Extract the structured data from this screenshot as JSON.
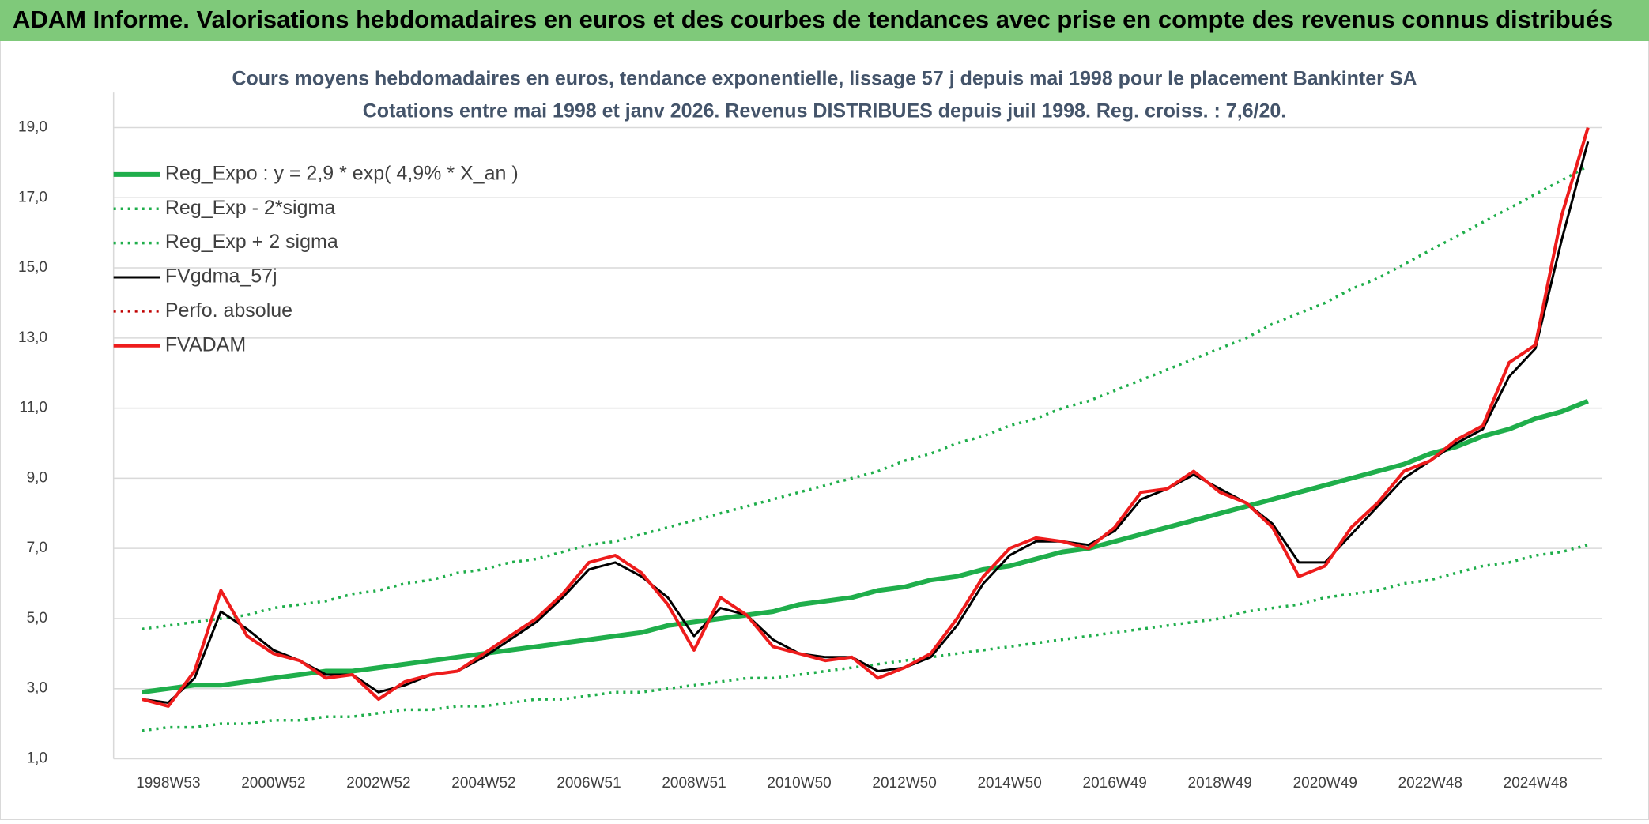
{
  "header": {
    "title": "ADAM Informe. Valorisations hebdomadaires en euros et des courbes de tendances avec prise en compte des revenus connus distribués"
  },
  "chart_data": {
    "type": "line",
    "title": "Cours moyens hebdomadaires en euros, tendance exponentielle, lissage 57 j depuis mai 1998 pour le placement Bankinter SA",
    "subtitle": "Cotations entre mai 1998 et janv 2026. Revenus DISTRIBUES depuis juil 1998. Reg. croiss. : 7,6/20.",
    "categories": [
      null,
      "1998W53",
      null,
      null,
      null,
      "2000W52",
      null,
      null,
      null,
      "2002W52",
      null,
      null,
      null,
      "2004W52",
      null,
      null,
      null,
      "2006W51",
      null,
      null,
      null,
      "2008W51",
      null,
      null,
      null,
      "2010W50",
      null,
      null,
      null,
      "2012W50",
      null,
      null,
      null,
      "2014W50",
      null,
      null,
      null,
      "2016W49",
      null,
      null,
      null,
      "2018W49",
      null,
      null,
      null,
      "2020W49",
      null,
      null,
      null,
      "2022W48",
      null,
      null,
      null,
      "2024W48",
      null,
      null
    ],
    "ylim": [
      1,
      20
    ],
    "yticks": [
      {
        "value": 1,
        "label": "1,0"
      },
      {
        "value": 3,
        "label": "3,0"
      },
      {
        "value": 5,
        "label": "5,0"
      },
      {
        "value": 7,
        "label": "7,0"
      },
      {
        "value": 9,
        "label": "9,0"
      },
      {
        "value": 11,
        "label": "11,0"
      },
      {
        "value": 13,
        "label": "13,0"
      },
      {
        "value": 15,
        "label": "15,0"
      },
      {
        "value": 17,
        "label": "17,0"
      },
      {
        "value": 19,
        "label": "19,0"
      }
    ],
    "grid": true,
    "legend": "upper left",
    "series": [
      {
        "name": "Reg_Expo : y = 2,9 * exp( 4,9% *  X_an )",
        "color": "#1fae4b",
        "style": "solid",
        "width": 6,
        "values": [
          2.9,
          3.0,
          3.1,
          3.1,
          3.2,
          3.3,
          3.4,
          3.5,
          3.5,
          3.6,
          3.7,
          3.8,
          3.9,
          4.0,
          4.1,
          4.2,
          4.3,
          4.4,
          4.5,
          4.6,
          4.8,
          4.9,
          5.0,
          5.1,
          5.2,
          5.4,
          5.5,
          5.6,
          5.8,
          5.9,
          6.1,
          6.2,
          6.4,
          6.5,
          6.7,
          6.9,
          7.0,
          7.2,
          7.4,
          7.6,
          7.8,
          8.0,
          8.2,
          8.4,
          8.6,
          8.8,
          9.0,
          9.2,
          9.4,
          9.7,
          9.9,
          10.2,
          10.4,
          10.7,
          10.9,
          11.2
        ]
      },
      {
        "name": "Reg_Exp - 2*sigma",
        "color": "#1fae4b",
        "style": "dotted",
        "width": 3.5,
        "values": [
          1.8,
          1.9,
          1.9,
          2.0,
          2.0,
          2.1,
          2.1,
          2.2,
          2.2,
          2.3,
          2.4,
          2.4,
          2.5,
          2.5,
          2.6,
          2.7,
          2.7,
          2.8,
          2.9,
          2.9,
          3.0,
          3.1,
          3.2,
          3.3,
          3.3,
          3.4,
          3.5,
          3.6,
          3.7,
          3.8,
          3.9,
          4.0,
          4.1,
          4.2,
          4.3,
          4.4,
          4.5,
          4.6,
          4.7,
          4.8,
          4.9,
          5.0,
          5.2,
          5.3,
          5.4,
          5.6,
          5.7,
          5.8,
          6.0,
          6.1,
          6.3,
          6.5,
          6.6,
          6.8,
          6.9,
          7.1
        ]
      },
      {
        "name": "Reg_Exp + 2 sigma",
        "color": "#1fae4b",
        "style": "dotted",
        "width": 3.5,
        "values": [
          4.7,
          4.8,
          4.9,
          5.0,
          5.1,
          5.3,
          5.4,
          5.5,
          5.7,
          5.8,
          6.0,
          6.1,
          6.3,
          6.4,
          6.6,
          6.7,
          6.9,
          7.1,
          7.2,
          7.4,
          7.6,
          7.8,
          8.0,
          8.2,
          8.4,
          8.6,
          8.8,
          9.0,
          9.2,
          9.5,
          9.7,
          10.0,
          10.2,
          10.5,
          10.7,
          11.0,
          11.2,
          11.5,
          11.8,
          12.1,
          12.4,
          12.7,
          13.0,
          13.4,
          13.7,
          14.0,
          14.4,
          14.7,
          15.1,
          15.5,
          15.9,
          16.3,
          16.7,
          17.1,
          17.5,
          17.9
        ]
      },
      {
        "name": "FVgdma_57j",
        "color": "#000000",
        "style": "solid",
        "width": 3,
        "values": [
          2.7,
          2.6,
          3.3,
          5.2,
          4.7,
          4.1,
          3.8,
          3.4,
          3.4,
          2.9,
          3.1,
          3.4,
          3.5,
          3.9,
          4.4,
          4.9,
          5.6,
          6.4,
          6.6,
          6.2,
          5.6,
          4.5,
          5.3,
          5.1,
          4.4,
          4.0,
          3.9,
          3.9,
          3.5,
          3.6,
          3.9,
          4.8,
          6.0,
          6.8,
          7.2,
          7.2,
          7.1,
          7.5,
          8.4,
          8.7,
          9.1,
          8.7,
          8.3,
          7.7,
          6.6,
          6.6,
          7.4,
          8.2,
          9.0,
          9.5,
          10.0,
          10.4,
          11.9,
          12.7,
          15.8,
          18.6
        ]
      },
      {
        "name": "Perfo. absolue",
        "color": "#c00000",
        "style": "dotted",
        "width": 2.5,
        "values": [
          2.7,
          2.5,
          3.5,
          5.8,
          4.5,
          4.0,
          3.8,
          3.3,
          3.4,
          2.7,
          3.2,
          3.4,
          3.5,
          4.0,
          4.5,
          5.0,
          5.7,
          6.6,
          6.8,
          6.3,
          5.4,
          4.1,
          5.6,
          5.1,
          4.2,
          4.0,
          3.8,
          3.9,
          3.3,
          3.6,
          4.0,
          5.0,
          6.2,
          7.0,
          7.3,
          7.2,
          7.0,
          7.6,
          8.6,
          8.7,
          9.2,
          8.6,
          8.3,
          7.6,
          6.2,
          6.5,
          7.6,
          8.3,
          9.2,
          9.5,
          10.1,
          10.5,
          12.3,
          12.8,
          16.5,
          19.0
        ]
      },
      {
        "name": "FVADAM",
        "color": "#ee1c1c",
        "style": "solid",
        "width": 4,
        "values": [
          2.7,
          2.5,
          3.5,
          5.8,
          4.5,
          4.0,
          3.8,
          3.3,
          3.4,
          2.7,
          3.2,
          3.4,
          3.5,
          4.0,
          4.5,
          5.0,
          5.7,
          6.6,
          6.8,
          6.3,
          5.4,
          4.1,
          5.6,
          5.1,
          4.2,
          4.0,
          3.8,
          3.9,
          3.3,
          3.6,
          4.0,
          5.0,
          6.2,
          7.0,
          7.3,
          7.2,
          7.0,
          7.6,
          8.6,
          8.7,
          9.2,
          8.6,
          8.3,
          7.6,
          6.2,
          6.5,
          7.6,
          8.3,
          9.2,
          9.5,
          10.1,
          10.5,
          12.3,
          12.8,
          16.5,
          19.0
        ]
      }
    ]
  }
}
